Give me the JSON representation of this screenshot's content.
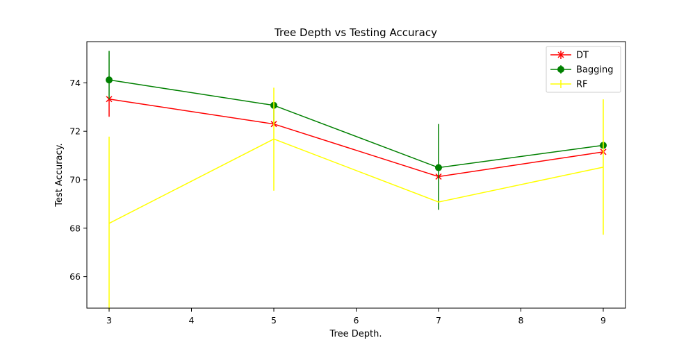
{
  "chart_data": {
    "type": "line",
    "title": "Tree Depth vs Testing Accuracy",
    "xlabel": "Tree Depth.",
    "ylabel": "Test Accuracy.",
    "xlim": [
      2.73,
      9.27
    ],
    "ylim": [
      64.7,
      75.7
    ],
    "xticks": [
      3,
      4,
      5,
      6,
      7,
      8,
      9
    ],
    "yticks": [
      66,
      68,
      70,
      72,
      74
    ],
    "legend_position": "top-right",
    "grid": false,
    "x": [
      3,
      5,
      7,
      9
    ],
    "series": [
      {
        "name": "DT",
        "color": "#ff0000",
        "marker": "x",
        "values": [
          73.33,
          72.3,
          70.13,
          71.15
        ],
        "err_low": [
          72.6,
          72.3,
          70.13,
          71.15
        ],
        "err_high": [
          73.33,
          72.3,
          70.13,
          71.15
        ]
      },
      {
        "name": "Bagging",
        "color": "#008000",
        "marker": "o",
        "values": [
          74.12,
          73.07,
          70.5,
          71.42
        ],
        "err_low": [
          73.33,
          72.3,
          68.76,
          71.42
        ],
        "err_high": [
          75.32,
          73.07,
          72.3,
          71.42
        ]
      },
      {
        "name": "RF",
        "color": "#ffff00",
        "marker": "none",
        "values": [
          68.2,
          71.68,
          69.08,
          70.52
        ],
        "err_low": [
          64.62,
          69.55,
          69.08,
          67.73
        ],
        "err_high": [
          71.78,
          73.8,
          69.08,
          73.32
        ]
      }
    ]
  }
}
